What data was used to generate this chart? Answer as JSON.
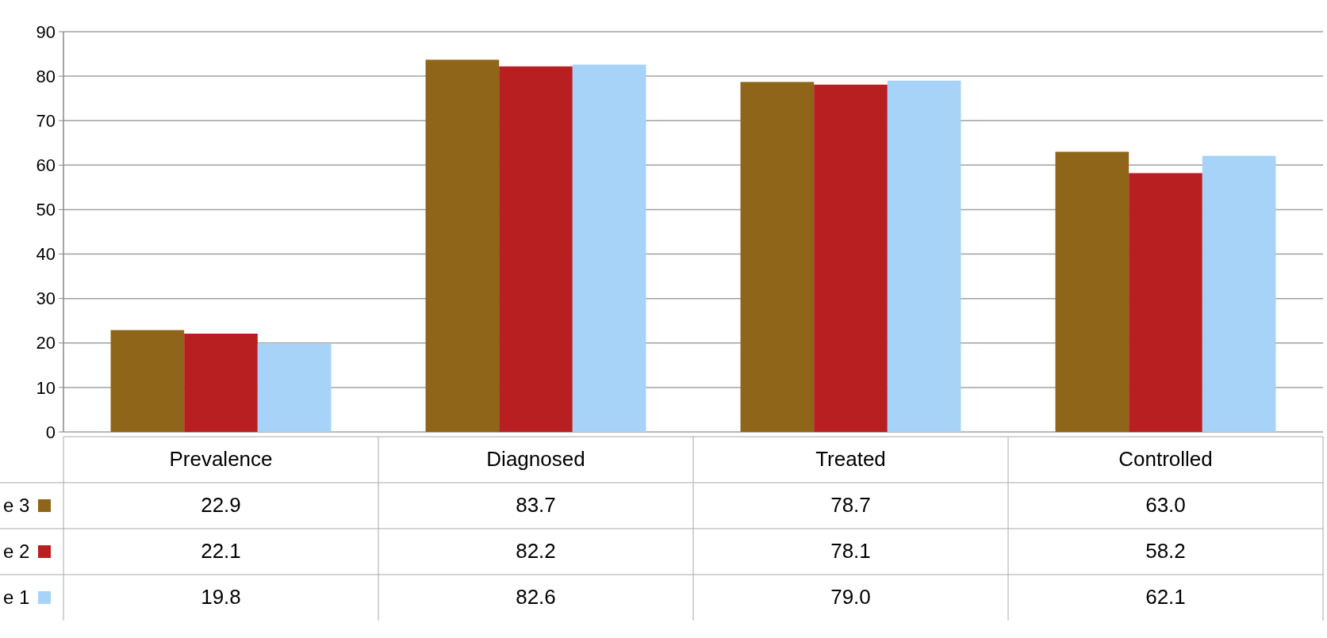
{
  "chart_data": {
    "type": "bar",
    "categories": [
      "Prevalence",
      "Diagnosed",
      "Treated",
      "Controlled"
    ],
    "series": [
      {
        "name": "e 3",
        "color": "#8e6519",
        "values": [
          22.9,
          83.7,
          78.7,
          63.0
        ],
        "value_labels": [
          "22.9",
          "83.7",
          "78.7",
          "63.0"
        ]
      },
      {
        "name": "e 2",
        "color": "#b81f21",
        "values": [
          22.1,
          82.2,
          78.1,
          58.2
        ],
        "value_labels": [
          "22.1",
          "82.2",
          "78.1",
          "58.2"
        ]
      },
      {
        "name": "e 1",
        "color": "#a6d3f7",
        "values": [
          19.8,
          82.6,
          79.0,
          62.1
        ],
        "value_labels": [
          "19.8",
          "82.6",
          "79.0",
          "62.1"
        ]
      }
    ],
    "ylim": [
      0,
      90
    ],
    "yticks": [
      0,
      10,
      20,
      30,
      40,
      50,
      60,
      70,
      80,
      90
    ],
    "grid": "y",
    "legend": "bottom left"
  }
}
